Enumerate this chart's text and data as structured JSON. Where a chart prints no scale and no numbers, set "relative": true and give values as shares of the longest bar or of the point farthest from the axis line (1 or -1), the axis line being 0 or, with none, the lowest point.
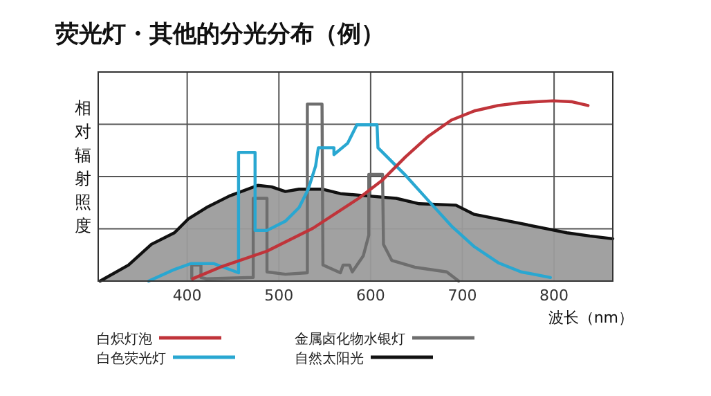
{
  "chart_data": {
    "type": "line",
    "title": "荧光灯・其他的分光分布（例）",
    "xlabel": "波长（nm）",
    "ylabel": "相对辐射照度",
    "relative": true,
    "xlim": [
      303,
      864
    ],
    "xticks": [
      400,
      500,
      600,
      700,
      800
    ],
    "grid": true,
    "legend": "bottom",
    "series": [
      {
        "name": "自然太阳光",
        "type": "area",
        "color": "#111111",
        "x": [
          305,
          336,
          361,
          386,
          401,
          421,
          446,
          477,
          492,
          507,
          522,
          547,
          567,
          598,
          628,
          653,
          693,
          713,
          739,
          764,
          789,
          814,
          839,
          864
        ],
        "values": [
          0,
          0.089,
          0.204,
          0.268,
          0.344,
          0.408,
          0.472,
          0.531,
          0.523,
          0.497,
          0.51,
          0.51,
          0.485,
          0.472,
          0.459,
          0.429,
          0.421,
          0.37,
          0.344,
          0.319,
          0.293,
          0.268,
          0.25,
          0.235
        ]
      },
      {
        "name": "金属卤化物水银灯",
        "color": "#6e6e6e",
        "x": [
          405,
          405,
          415,
          415,
          421,
          472,
          472,
          487,
          487,
          507,
          531,
          531,
          547,
          548,
          567,
          570,
          577,
          580,
          592,
          598,
          598,
          613,
          614,
          623,
          648,
          683,
          696
        ],
        "values": [
          0.013,
          0.089,
          0.089,
          0.02,
          0.013,
          0.02,
          0.459,
          0.459,
          0.051,
          0.038,
          0.046,
          0.982,
          0.982,
          0.089,
          0.046,
          0.089,
          0.089,
          0.051,
          0.14,
          0.255,
          0.592,
          0.592,
          0.204,
          0.115,
          0.077,
          0.051,
          0
        ]
      },
      {
        "name": "白色荧光灯",
        "color": "#29a7d1",
        "x": [
          358,
          386,
          404,
          429,
          456,
          456,
          474,
          474,
          487,
          507,
          522,
          532,
          540,
          543,
          560,
          560,
          575,
          585,
          607,
          608,
          638,
          663,
          688,
          713,
          739,
          764,
          796
        ],
        "values": [
          0,
          0.064,
          0.097,
          0.097,
          0.046,
          0.714,
          0.714,
          0.281,
          0.281,
          0.332,
          0.408,
          0.51,
          0.638,
          0.74,
          0.74,
          0.702,
          0.765,
          0.867,
          0.867,
          0.74,
          0.587,
          0.446,
          0.306,
          0.191,
          0.102,
          0.051,
          0.02
        ]
      },
      {
        "name": "白炽灯泡",
        "color": "#c0343a",
        "x": [
          406,
          436,
          487,
          537,
          587,
          613,
          638,
          663,
          688,
          713,
          739,
          764,
          799,
          819,
          837
        ],
        "values": [
          0.013,
          0.077,
          0.166,
          0.293,
          0.459,
          0.561,
          0.689,
          0.804,
          0.893,
          0.944,
          0.974,
          0.99,
          1,
          0.995,
          0.974
        ]
      }
    ]
  }
}
